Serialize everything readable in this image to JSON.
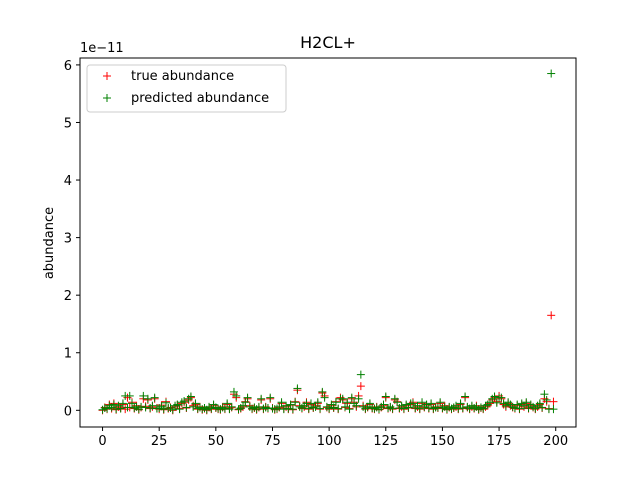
{
  "chart_data": {
    "type": "scatter",
    "title": "H2CL+",
    "xlabel": "",
    "ylabel": "abundance",
    "y_offset_text": "1e−11",
    "xlim": [
      -9.95,
      208.95
    ],
    "ylim": [
      -0.29,
      6.12
    ],
    "xticks": [
      0,
      25,
      50,
      75,
      100,
      125,
      150,
      175,
      200
    ],
    "yticks": [
      0,
      1,
      2,
      3,
      4,
      5,
      6
    ],
    "grid": false,
    "legend_position": "top-left",
    "series": [
      {
        "name": "true abundance",
        "color": "#ff0000",
        "marker": "plus",
        "x": [
          0,
          1,
          2,
          3,
          4,
          5,
          6,
          7,
          8,
          9,
          10,
          11,
          12,
          13,
          14,
          15,
          16,
          17,
          18,
          19,
          20,
          21,
          22,
          23,
          24,
          25,
          26,
          27,
          28,
          29,
          30,
          31,
          32,
          33,
          34,
          35,
          36,
          37,
          38,
          39,
          40,
          41,
          42,
          43,
          44,
          45,
          46,
          47,
          48,
          49,
          50,
          51,
          52,
          53,
          54,
          55,
          56,
          57,
          58,
          59,
          60,
          61,
          62,
          63,
          64,
          65,
          66,
          67,
          68,
          69,
          70,
          71,
          72,
          73,
          74,
          75,
          76,
          77,
          78,
          79,
          80,
          81,
          82,
          83,
          84,
          85,
          86,
          87,
          88,
          89,
          90,
          91,
          92,
          93,
          94,
          95,
          96,
          97,
          98,
          99,
          100,
          101,
          102,
          103,
          104,
          105,
          106,
          107,
          108,
          109,
          110,
          111,
          112,
          113,
          114,
          115,
          116,
          117,
          118,
          119,
          120,
          121,
          122,
          123,
          124,
          125,
          126,
          127,
          128,
          129,
          130,
          131,
          132,
          133,
          134,
          135,
          136,
          137,
          138,
          139,
          140,
          141,
          142,
          143,
          144,
          145,
          146,
          147,
          148,
          149,
          150,
          151,
          152,
          153,
          154,
          155,
          156,
          157,
          158,
          159,
          160,
          161,
          162,
          163,
          164,
          165,
          166,
          167,
          168,
          169,
          170,
          171,
          172,
          173,
          174,
          175,
          176,
          177,
          178,
          179,
          180,
          181,
          182,
          183,
          184,
          185,
          186,
          187,
          188,
          189,
          190,
          191,
          192,
          193,
          194,
          195,
          196,
          197,
          198,
          199
        ],
        "y": [
          0.0,
          0.05,
          0.02,
          0.1,
          0.03,
          0.12,
          0.01,
          0.06,
          0.04,
          0.1,
          0.02,
          0.22,
          0.05,
          0.14,
          0.03,
          0.08,
          0.01,
          0.05,
          0.2,
          0.07,
          0.18,
          0.03,
          0.06,
          0.2,
          0.04,
          0.02,
          0.09,
          0.01,
          0.15,
          0.03,
          0.05,
          0.0,
          0.06,
          0.09,
          0.03,
          0.12,
          0.14,
          0.04,
          0.18,
          0.22,
          0.08,
          0.1,
          0.02,
          0.06,
          0.01,
          0.03,
          0.0,
          0.05,
          0.02,
          0.08,
          0.04,
          0.02,
          0.01,
          0.06,
          0.02,
          0.1,
          0.03,
          0.05,
          0.28,
          0.22,
          0.01,
          0.03,
          0.06,
          0.15,
          0.2,
          0.08,
          0.02,
          0.04,
          0.01,
          0.05,
          0.18,
          0.02,
          0.06,
          0.03,
          0.2,
          0.04,
          0.01,
          0.02,
          0.05,
          0.12,
          0.03,
          0.06,
          0.02,
          0.09,
          0.01,
          0.15,
          0.35,
          0.08,
          0.03,
          0.06,
          0.14,
          0.02,
          0.1,
          0.04,
          0.08,
          0.12,
          0.02,
          0.3,
          0.25,
          0.05,
          0.02,
          0.08,
          0.04,
          0.15,
          0.02,
          0.22,
          0.18,
          0.05,
          0.12,
          0.03,
          0.2,
          0.14,
          0.06,
          0.25,
          0.42,
          0.08,
          0.02,
          0.05,
          0.1,
          0.03,
          0.02,
          0.06,
          0.01,
          0.05,
          0.08,
          0.22,
          0.03,
          0.05,
          0.02,
          0.18,
          0.15,
          0.03,
          0.06,
          0.02,
          0.08,
          0.04,
          0.1,
          0.14,
          0.03,
          0.06,
          0.02,
          0.12,
          0.05,
          0.09,
          0.03,
          0.1,
          0.02,
          0.06,
          0.04,
          0.12,
          0.03,
          0.08,
          0.01,
          0.05,
          0.02,
          0.04,
          0.06,
          0.02,
          0.1,
          0.03,
          0.22,
          0.05,
          0.02,
          0.06,
          0.03,
          0.08,
          0.01,
          0.04,
          0.02,
          0.06,
          0.08,
          0.12,
          0.18,
          0.22,
          0.15,
          0.25,
          0.2,
          0.1,
          0.06,
          0.12,
          0.08,
          0.05,
          0.03,
          0.08,
          0.02,
          0.1,
          0.06,
          0.12,
          0.03,
          0.08,
          0.05,
          0.02,
          0.06,
          0.1,
          0.04,
          0.2,
          0.15,
          0.03,
          1.65,
          0.15
        ]
      },
      {
        "name": "predicted abundance",
        "color": "#008000",
        "marker": "plus",
        "x": [
          0,
          1,
          2,
          3,
          4,
          5,
          6,
          7,
          8,
          9,
          10,
          11,
          12,
          13,
          14,
          15,
          16,
          17,
          18,
          19,
          20,
          21,
          22,
          23,
          24,
          25,
          26,
          27,
          28,
          29,
          30,
          31,
          32,
          33,
          34,
          35,
          36,
          37,
          38,
          39,
          40,
          41,
          42,
          43,
          44,
          45,
          46,
          47,
          48,
          49,
          50,
          51,
          52,
          53,
          54,
          55,
          56,
          57,
          58,
          59,
          60,
          61,
          62,
          63,
          64,
          65,
          66,
          67,
          68,
          69,
          70,
          71,
          72,
          73,
          74,
          75,
          76,
          77,
          78,
          79,
          80,
          81,
          82,
          83,
          84,
          85,
          86,
          87,
          88,
          89,
          90,
          91,
          92,
          93,
          94,
          95,
          96,
          97,
          98,
          99,
          100,
          101,
          102,
          103,
          104,
          105,
          106,
          107,
          108,
          109,
          110,
          111,
          112,
          113,
          114,
          115,
          116,
          117,
          118,
          119,
          120,
          121,
          122,
          123,
          124,
          125,
          126,
          127,
          128,
          129,
          130,
          131,
          132,
          133,
          134,
          135,
          136,
          137,
          138,
          139,
          140,
          141,
          142,
          143,
          144,
          145,
          146,
          147,
          148,
          149,
          150,
          151,
          152,
          153,
          154,
          155,
          156,
          157,
          158,
          159,
          160,
          161,
          162,
          163,
          164,
          165,
          166,
          167,
          168,
          169,
          170,
          171,
          172,
          173,
          174,
          175,
          176,
          177,
          178,
          179,
          180,
          181,
          182,
          183,
          184,
          185,
          186,
          187,
          188,
          189,
          190,
          191,
          192,
          193,
          194,
          195,
          196,
          197,
          198,
          199
        ],
        "y": [
          0.01,
          0.04,
          0.03,
          0.08,
          0.05,
          0.1,
          0.02,
          0.08,
          0.03,
          0.12,
          0.25,
          0.05,
          0.25,
          0.12,
          0.04,
          0.06,
          0.02,
          0.06,
          0.25,
          0.05,
          0.2,
          0.04,
          0.08,
          0.22,
          0.03,
          0.04,
          0.07,
          0.02,
          0.13,
          0.04,
          0.04,
          0.01,
          0.08,
          0.1,
          0.02,
          0.14,
          0.16,
          0.05,
          0.2,
          0.24,
          0.06,
          0.12,
          0.03,
          0.05,
          0.02,
          0.04,
          0.01,
          0.06,
          0.03,
          0.1,
          0.05,
          0.03,
          0.02,
          0.05,
          0.03,
          0.12,
          0.02,
          0.06,
          0.32,
          0.25,
          0.02,
          0.04,
          0.08,
          0.14,
          0.22,
          0.06,
          0.03,
          0.05,
          0.02,
          0.06,
          0.2,
          0.03,
          0.05,
          0.04,
          0.22,
          0.03,
          0.02,
          0.03,
          0.06,
          0.14,
          0.02,
          0.08,
          0.03,
          0.1,
          0.02,
          0.14,
          0.38,
          0.06,
          0.04,
          0.08,
          0.12,
          0.03,
          0.12,
          0.05,
          0.06,
          0.14,
          0.03,
          0.32,
          0.22,
          0.06,
          0.03,
          0.1,
          0.05,
          0.14,
          0.03,
          0.2,
          0.2,
          0.06,
          0.14,
          0.02,
          0.22,
          0.12,
          0.08,
          0.2,
          0.62,
          0.06,
          0.03,
          0.06,
          0.12,
          0.04,
          0.03,
          0.05,
          0.02,
          0.06,
          0.1,
          0.24,
          0.04,
          0.06,
          0.03,
          0.2,
          0.14,
          0.04,
          0.08,
          0.03,
          0.1,
          0.05,
          0.12,
          0.12,
          0.04,
          0.08,
          0.03,
          0.14,
          0.06,
          0.1,
          0.04,
          0.12,
          0.03,
          0.05,
          0.05,
          0.14,
          0.04,
          0.06,
          0.02,
          0.06,
          0.03,
          0.05,
          0.08,
          0.03,
          0.12,
          0.04,
          0.24,
          0.06,
          0.03,
          0.08,
          0.04,
          0.06,
          0.02,
          0.05,
          0.03,
          0.08,
          0.1,
          0.14,
          0.2,
          0.24,
          0.13,
          0.22,
          0.22,
          0.12,
          0.08,
          0.14,
          0.1,
          0.06,
          0.04,
          0.1,
          0.03,
          0.12,
          0.08,
          0.14,
          0.04,
          0.1,
          0.06,
          0.03,
          0.08,
          0.12,
          0.05,
          0.28,
          0.18,
          0.02,
          5.85,
          0.02
        ]
      }
    ]
  }
}
